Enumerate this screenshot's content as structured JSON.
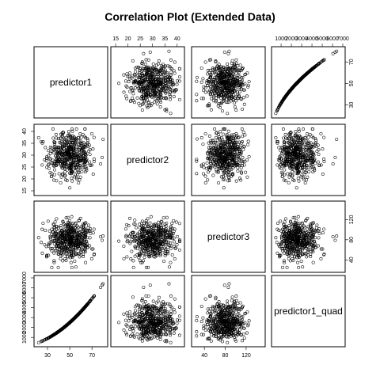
{
  "chart_data": {
    "type": "scatter",
    "title": "Correlation Plot (Extended Data)",
    "variables": [
      {
        "name": "predictor1",
        "range": [
          20,
          82
        ],
        "ticks": [
          30,
          50,
          70
        ]
      },
      {
        "name": "predictor2",
        "range": [
          14,
          42
        ],
        "ticks": [
          15,
          20,
          25,
          30,
          35,
          40
        ]
      },
      {
        "name": "predictor3",
        "range": [
          20,
          152
        ],
        "ticks": [
          40,
          80,
          120
        ]
      },
      {
        "name": "predictor1_quad",
        "range": [
          300,
          7000
        ],
        "ticks": [
          1000,
          2000,
          3000,
          4000,
          5000,
          6000,
          7000
        ]
      }
    ],
    "n_points": 500,
    "relationships": {
      "predictor1_vs_predictor1_quad": "predictor1_quad = predictor1^2",
      "other_pairs": "uncorrelated"
    },
    "distributions": {
      "predictor1": {
        "mean": 50,
        "sd": 10
      },
      "predictor2": {
        "mean": 30,
        "sd": 5
      },
      "predictor3": {
        "mean": 80,
        "sd": 18
      }
    },
    "tick_sides": {
      "top": [
        1,
        3
      ],
      "bottom": [
        0,
        2
      ],
      "left": [
        1,
        3
      ],
      "right": [
        0,
        2
      ]
    },
    "grid": false,
    "legend": "none"
  }
}
